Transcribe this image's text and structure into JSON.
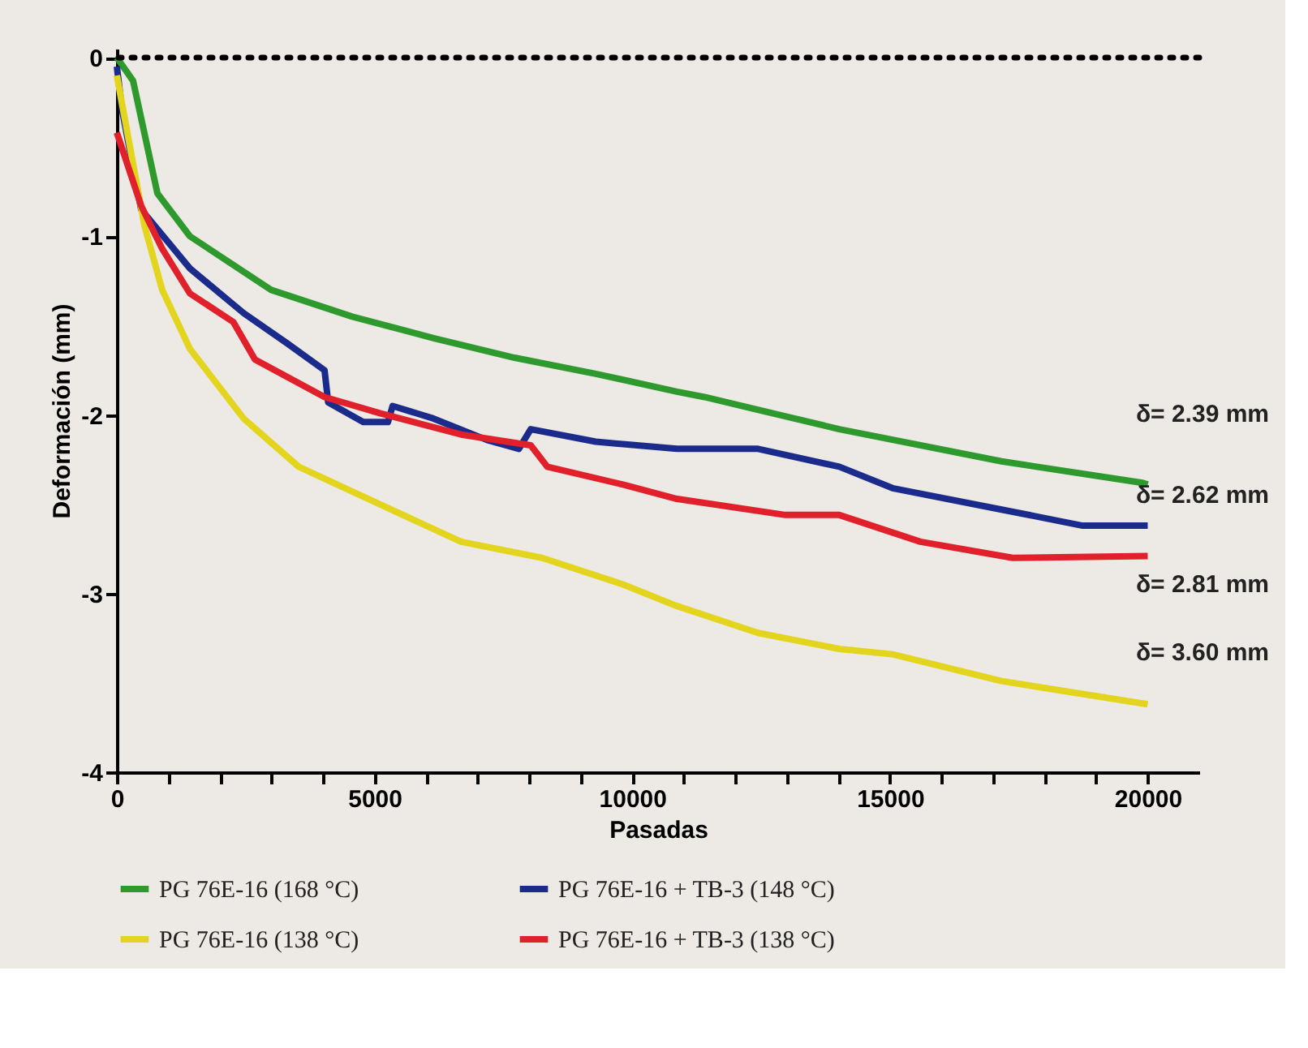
{
  "chart_data": {
    "type": "line",
    "xlabel": "Pasadas",
    "ylabel": "Deformación (mm)",
    "xlim": [
      0,
      21000
    ],
    "ylim": [
      -4,
      0.05
    ],
    "xticks": [
      0,
      {
        "value": 1000,
        "label": null
      },
      {
        "value": 2000,
        "label": null
      },
      {
        "value": 3000,
        "label": null
      },
      {
        "value": 4000,
        "label": null
      },
      5000,
      {
        "value": 6000,
        "label": null
      },
      {
        "value": 7000,
        "label": null
      },
      {
        "value": 8000,
        "label": null
      },
      {
        "value": 9000,
        "label": null
      },
      10000,
      {
        "value": 11000,
        "label": null
      },
      {
        "value": 12000,
        "label": null
      },
      {
        "value": 13000,
        "label": null
      },
      {
        "value": 14000,
        "label": null
      },
      15000,
      {
        "value": 16000,
        "label": null
      },
      {
        "value": 17000,
        "label": null
      },
      {
        "value": 18000,
        "label": null
      },
      {
        "value": 19000,
        "label": null
      },
      20000
    ],
    "yticks": [
      -4,
      -3,
      -2,
      -1,
      0
    ],
    "grid": false,
    "legend": "bottom",
    "marker": "none",
    "line_style": "solid",
    "ref_lines": [
      {
        "axis": "y",
        "value": 0,
        "line_style": "dotted",
        "color": "#000000"
      }
    ],
    "annotations": [
      "δ= 2.39 mm",
      "δ= 2.62 mm",
      "δ= 2.81 mm",
      "δ= 3.60 mm"
    ],
    "series": [
      {
        "name": "PG 76E-16 (168 °C)",
        "color": "#2e9a2e",
        "x": [
          0,
          315,
          787,
          1417,
          2992,
          4567,
          6142,
          7717,
          9291,
          10866,
          11400,
          14016,
          17165,
          19900,
          20000
        ],
        "values": [
          0,
          -0.13,
          -0.76,
          -1.0,
          -1.3,
          -1.45,
          -1.57,
          -1.68,
          -1.77,
          -1.87,
          -1.9,
          -2.08,
          -2.26,
          -2.38,
          -2.39
        ]
      },
      {
        "name": "PG 76E-16 + TB-3 (148 °C)",
        "color": "#1a2b8c",
        "x": [
          0,
          100,
          472,
          1417,
          2460,
          3307,
          4030,
          4100,
          4780,
          5260,
          5350,
          6140,
          7180,
          7800,
          8030,
          9290,
          10866,
          12440,
          14016,
          15050,
          17165,
          18740,
          20000
        ],
        "values": [
          -0.05,
          -0.29,
          -0.85,
          -1.18,
          -1.43,
          -1.6,
          -1.75,
          -1.93,
          -2.04,
          -2.04,
          -1.95,
          -2.02,
          -2.14,
          -2.19,
          -2.08,
          -2.15,
          -2.19,
          -2.19,
          -2.29,
          -2.41,
          -2.53,
          -2.62,
          -2.62
        ]
      },
      {
        "name": "PG 76E-16 (138 °C)",
        "color": "#e3d51e",
        "x": [
          0,
          535,
          880,
          1417,
          2460,
          3527,
          5100,
          6680,
          8250,
          9830,
          10866,
          12440,
          14016,
          15050,
          17165,
          20000
        ],
        "values": [
          -0.1,
          -0.94,
          -1.3,
          -1.63,
          -2.02,
          -2.29,
          -2.5,
          -2.71,
          -2.8,
          -2.95,
          -3.07,
          -3.22,
          -3.31,
          -3.34,
          -3.49,
          -3.62
        ]
      },
      {
        "name": "PG 76E-16 + TB-3 (138 °C)",
        "color": "#e0202a",
        "x": [
          0,
          472,
          880,
          1417,
          2260,
          2680,
          4030,
          5100,
          6680,
          8030,
          8350,
          9820,
          10866,
          12970,
          14016,
          15590,
          17380,
          20000
        ],
        "values": [
          -0.42,
          -0.83,
          -1.07,
          -1.32,
          -1.48,
          -1.69,
          -1.9,
          -1.99,
          -2.11,
          -2.17,
          -2.29,
          -2.39,
          -2.47,
          -2.56,
          -2.56,
          -2.71,
          -2.8,
          -2.79
        ]
      }
    ]
  }
}
